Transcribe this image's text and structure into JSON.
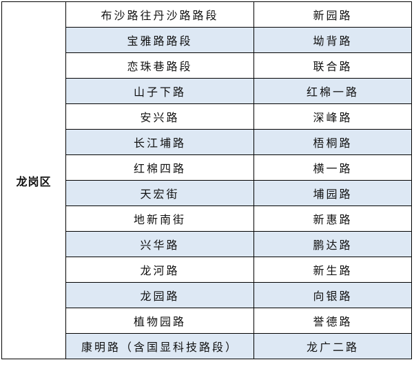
{
  "district": "龙岗区",
  "rows": [
    [
      "布沙路往丹沙路路段",
      "新园路"
    ],
    [
      "宝雅路路段",
      "坳背路"
    ],
    [
      "恋珠巷路段",
      "联合路"
    ],
    [
      "山子下路",
      "红棉一路"
    ],
    [
      "安兴路",
      "深峰路"
    ],
    [
      "长江埔路",
      "梧桐路"
    ],
    [
      "红棉四路",
      "横一路"
    ],
    [
      "天宏街",
      "埔园路"
    ],
    [
      "地新南街",
      "新惠路"
    ],
    [
      "兴华路",
      "鹏达路"
    ],
    [
      "龙河路",
      "新生路"
    ],
    [
      "龙园路",
      "向银路"
    ],
    [
      "植物园路",
      "誉德路"
    ],
    [
      "康明路（含国显科技路段）",
      "龙广二路"
    ]
  ],
  "colors": {
    "shade": "#dde8f4",
    "border": "#000000"
  }
}
